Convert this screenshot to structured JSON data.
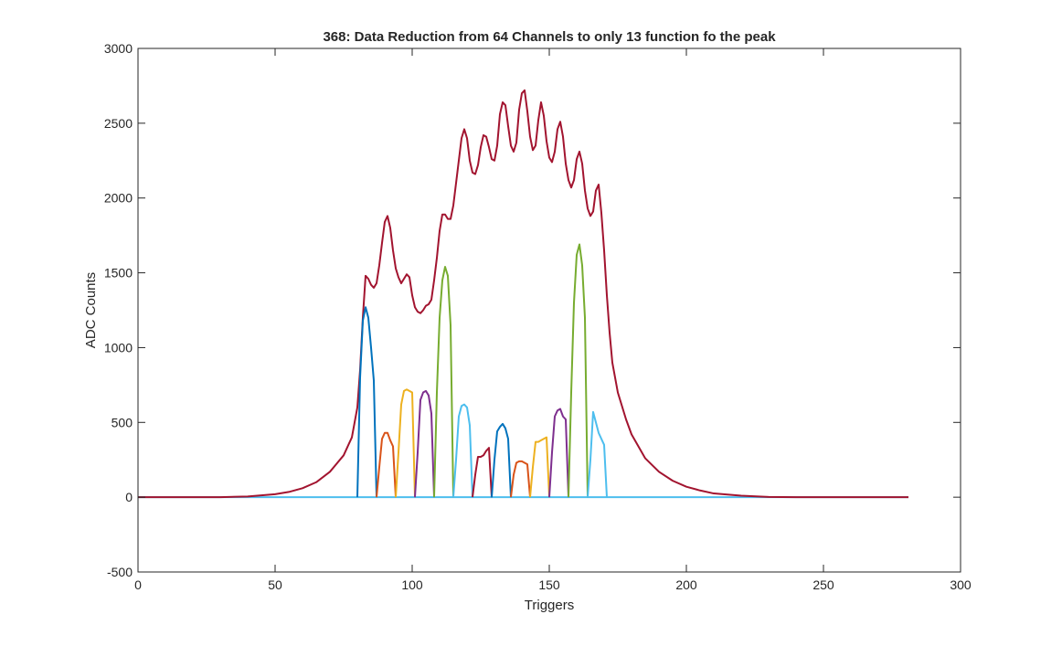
{
  "chart_data": {
    "type": "line",
    "title": "368: Data Reduction from 64 Channels to only 13 function fo the peak",
    "xlabel": "Triggers",
    "ylabel": "ADC Counts",
    "xlim": [
      0,
      300
    ],
    "ylim": [
      -500,
      3000
    ],
    "xticks": [
      0,
      50,
      100,
      150,
      200,
      250,
      300
    ],
    "yticks": [
      -500,
      0,
      500,
      1000,
      1500,
      2000,
      2500,
      3000
    ],
    "grid": false,
    "legend": null,
    "colors": {
      "axes": "#262626",
      "background": "#ffffff",
      "envelope": "#a2142f"
    },
    "envelope": {
      "color": "#a2142f",
      "points": [
        [
          0,
          0
        ],
        [
          10,
          0
        ],
        [
          20,
          0
        ],
        [
          30,
          0
        ],
        [
          40,
          5
        ],
        [
          45,
          12
        ],
        [
          50,
          20
        ],
        [
          55,
          35
        ],
        [
          60,
          60
        ],
        [
          65,
          100
        ],
        [
          70,
          170
        ],
        [
          75,
          280
        ],
        [
          78,
          400
        ],
        [
          80,
          600
        ],
        [
          81,
          850
        ],
        [
          82,
          1200
        ],
        [
          83,
          1480
        ],
        [
          84,
          1460
        ],
        [
          85,
          1420
        ],
        [
          86,
          1400
        ],
        [
          87,
          1430
        ],
        [
          88,
          1550
        ],
        [
          89,
          1700
        ],
        [
          90,
          1840
        ],
        [
          91,
          1880
        ],
        [
          92,
          1800
        ],
        [
          93,
          1650
        ],
        [
          94,
          1530
        ],
        [
          95,
          1470
        ],
        [
          96,
          1430
        ],
        [
          97,
          1460
        ],
        [
          98,
          1490
        ],
        [
          99,
          1470
        ],
        [
          100,
          1350
        ],
        [
          101,
          1270
        ],
        [
          102,
          1240
        ],
        [
          103,
          1230
        ],
        [
          104,
          1250
        ],
        [
          105,
          1280
        ],
        [
          106,
          1290
        ],
        [
          107,
          1320
        ],
        [
          108,
          1450
        ],
        [
          109,
          1600
        ],
        [
          110,
          1780
        ],
        [
          111,
          1890
        ],
        [
          112,
          1890
        ],
        [
          113,
          1860
        ],
        [
          114,
          1860
        ],
        [
          115,
          1950
        ],
        [
          116,
          2100
        ],
        [
          117,
          2250
        ],
        [
          118,
          2400
        ],
        [
          119,
          2460
        ],
        [
          120,
          2400
        ],
        [
          121,
          2250
        ],
        [
          122,
          2170
        ],
        [
          123,
          2160
        ],
        [
          124,
          2220
        ],
        [
          125,
          2340
        ],
        [
          126,
          2420
        ],
        [
          127,
          2410
        ],
        [
          128,
          2340
        ],
        [
          129,
          2260
        ],
        [
          130,
          2250
        ],
        [
          131,
          2350
        ],
        [
          132,
          2560
        ],
        [
          133,
          2640
        ],
        [
          134,
          2620
        ],
        [
          135,
          2480
        ],
        [
          136,
          2350
        ],
        [
          137,
          2310
        ],
        [
          138,
          2370
        ],
        [
          139,
          2590
        ],
        [
          140,
          2700
        ],
        [
          141,
          2720
        ],
        [
          142,
          2580
        ],
        [
          143,
          2410
        ],
        [
          144,
          2320
        ],
        [
          145,
          2350
        ],
        [
          146,
          2520
        ],
        [
          147,
          2640
        ],
        [
          148,
          2550
        ],
        [
          149,
          2380
        ],
        [
          150,
          2270
        ],
        [
          151,
          2240
        ],
        [
          152,
          2310
        ],
        [
          153,
          2460
        ],
        [
          154,
          2510
        ],
        [
          155,
          2410
        ],
        [
          156,
          2230
        ],
        [
          157,
          2120
        ],
        [
          158,
          2070
        ],
        [
          159,
          2120
        ],
        [
          160,
          2260
        ],
        [
          161,
          2310
        ],
        [
          162,
          2230
        ],
        [
          163,
          2050
        ],
        [
          164,
          1930
        ],
        [
          165,
          1880
        ],
        [
          166,
          1910
        ],
        [
          167,
          2050
        ],
        [
          168,
          2090
        ],
        [
          169,
          1900
        ],
        [
          170,
          1650
        ],
        [
          171,
          1350
        ],
        [
          172,
          1100
        ],
        [
          173,
          900
        ],
        [
          175,
          700
        ],
        [
          178,
          520
        ],
        [
          180,
          420
        ],
        [
          185,
          260
        ],
        [
          190,
          170
        ],
        [
          195,
          110
        ],
        [
          200,
          70
        ],
        [
          205,
          45
        ],
        [
          210,
          25
        ],
        [
          220,
          10
        ],
        [
          230,
          2
        ],
        [
          240,
          0
        ],
        [
          250,
          0
        ],
        [
          260,
          0
        ],
        [
          270,
          0
        ],
        [
          281,
          0
        ]
      ]
    },
    "series": [
      {
        "color": "#0072bd",
        "points": [
          [
            80,
            0
          ],
          [
            81,
            800
          ],
          [
            82,
            1180
          ],
          [
            83,
            1270
          ],
          [
            84,
            1200
          ],
          [
            85,
            1000
          ],
          [
            86,
            780
          ],
          [
            87,
            0
          ]
        ]
      },
      {
        "color": "#d95319",
        "points": [
          [
            87,
            0
          ],
          [
            88,
            200
          ],
          [
            89,
            390
          ],
          [
            90,
            430
          ],
          [
            91,
            430
          ],
          [
            92,
            380
          ],
          [
            93,
            340
          ],
          [
            94,
            0
          ]
        ]
      },
      {
        "color": "#edb120",
        "points": [
          [
            94,
            0
          ],
          [
            95,
            300
          ],
          [
            96,
            620
          ],
          [
            97,
            710
          ],
          [
            98,
            720
          ],
          [
            99,
            710
          ],
          [
            100,
            700
          ],
          [
            101,
            0
          ]
        ]
      },
      {
        "color": "#7e2f8e",
        "points": [
          [
            101,
            0
          ],
          [
            102,
            300
          ],
          [
            103,
            650
          ],
          [
            104,
            700
          ],
          [
            105,
            710
          ],
          [
            106,
            680
          ],
          [
            107,
            560
          ],
          [
            108,
            0
          ]
        ]
      },
      {
        "color": "#77ac30",
        "points": [
          [
            108,
            0
          ],
          [
            109,
            700
          ],
          [
            110,
            1200
          ],
          [
            111,
            1450
          ],
          [
            112,
            1540
          ],
          [
            113,
            1480
          ],
          [
            114,
            1150
          ],
          [
            115,
            0
          ]
        ]
      },
      {
        "color": "#4dbeee",
        "points": [
          [
            115,
            0
          ],
          [
            116,
            250
          ],
          [
            117,
            540
          ],
          [
            118,
            610
          ],
          [
            119,
            620
          ],
          [
            120,
            600
          ],
          [
            121,
            480
          ],
          [
            122,
            0
          ]
        ]
      },
      {
        "color": "#a2142f",
        "points": [
          [
            122,
            0
          ],
          [
            123,
            150
          ],
          [
            124,
            270
          ],
          [
            125,
            270
          ],
          [
            126,
            280
          ],
          [
            127,
            310
          ],
          [
            128,
            330
          ],
          [
            129,
            0
          ]
        ]
      },
      {
        "color": "#0072bd",
        "points": [
          [
            129,
            0
          ],
          [
            130,
            250
          ],
          [
            131,
            440
          ],
          [
            132,
            470
          ],
          [
            133,
            490
          ],
          [
            134,
            460
          ],
          [
            135,
            390
          ],
          [
            136,
            0
          ]
        ]
      },
      {
        "color": "#d95319",
        "points": [
          [
            136,
            0
          ],
          [
            137,
            150
          ],
          [
            138,
            230
          ],
          [
            139,
            240
          ],
          [
            140,
            240
          ],
          [
            141,
            230
          ],
          [
            142,
            220
          ],
          [
            143,
            0
          ]
        ]
      },
      {
        "color": "#edb120",
        "points": [
          [
            143,
            0
          ],
          [
            144,
            200
          ],
          [
            145,
            370
          ],
          [
            146,
            370
          ],
          [
            147,
            380
          ],
          [
            148,
            390
          ],
          [
            149,
            400
          ],
          [
            150,
            0
          ]
        ]
      },
      {
        "color": "#7e2f8e",
        "points": [
          [
            150,
            0
          ],
          [
            151,
            300
          ],
          [
            152,
            540
          ],
          [
            153,
            580
          ],
          [
            154,
            590
          ],
          [
            155,
            540
          ],
          [
            156,
            520
          ],
          [
            157,
            0
          ]
        ]
      },
      {
        "color": "#77ac30",
        "points": [
          [
            157,
            0
          ],
          [
            158,
            700
          ],
          [
            159,
            1300
          ],
          [
            160,
            1620
          ],
          [
            161,
            1690
          ],
          [
            162,
            1550
          ],
          [
            163,
            1200
          ],
          [
            164,
            0
          ]
        ]
      },
      {
        "color": "#4dbeee",
        "points": [
          [
            164,
            0
          ],
          [
            165,
            250
          ],
          [
            166,
            570
          ],
          [
            167,
            500
          ],
          [
            168,
            430
          ],
          [
            169,
            390
          ],
          [
            170,
            350
          ],
          [
            171,
            0
          ]
        ]
      }
    ],
    "baseline": {
      "color": "#4dbeee",
      "x": [
        0,
        281
      ],
      "y": 0
    }
  }
}
